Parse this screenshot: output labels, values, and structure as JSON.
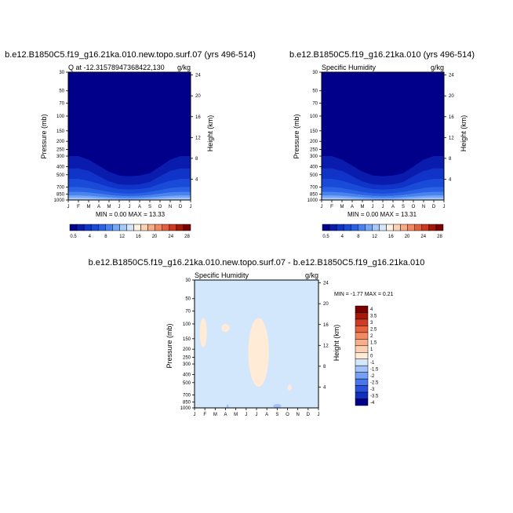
{
  "panels": {
    "top_left": {
      "main_title": "b.e12.B1850C5.f19_g16.21ka.010.new.topo.surf.07 (yrs 496-514)",
      "left_string": "Q at -12.31578947368422,130",
      "right_string": "g/kg",
      "ylabel": "Pressure (mb)",
      "ylabel_right": "Height (km)",
      "minmax": "MIN =  0.00 MAX = 13.33"
    },
    "top_right": {
      "main_title": "b.e12.B1850C5.f19_g16.21ka.010 (yrs 496-514)",
      "left_string": "Specific Humidity",
      "right_string": "g/kg",
      "ylabel": "Pressure (mb)",
      "ylabel_right": "Height (km)",
      "minmax": "MIN =  0.00 MAX = 13.31"
    },
    "bottom": {
      "main_title": "b.e12.B1850C5.f19_g16.21ka.010.new.topo.surf.07 - b.e12.B1850C5.f19_g16.21ka.010",
      "left_string": "Specific Humidity",
      "right_string": "g/kg",
      "ylabel": "Pressure (mb)",
      "ylabel_right": "Height (km)",
      "minmax": "MIN =  -1.77 MAX =   0.21"
    }
  },
  "colors": {
    "abs_scale": [
      "#00008b",
      "#0a1cae",
      "#1034c8",
      "#1a4ad8",
      "#2a62e4",
      "#4a82f0",
      "#76a8f6",
      "#a6c8fa",
      "#d4e6fc",
      "#fff0e0",
      "#fcd2b4",
      "#f8ac86",
      "#f28860",
      "#e4603c",
      "#cc3a20",
      "#a41808",
      "#7a0000"
    ],
    "diff_scale": [
      "#00008b",
      "#1030c0",
      "#2a52de",
      "#4a76ee",
      "#76a0f6",
      "#a2c2fa",
      "#d2e6fc",
      "#ffebd6",
      "#fcd0b0",
      "#f8ae86",
      "#f28a62",
      "#e8623e",
      "#d03c22",
      "#a81808",
      "#7a0000"
    ]
  },
  "chart_data": [
    {
      "type": "heatmap",
      "panel": "top_left",
      "title": "Q at -12.31578947368422,130",
      "xlabel": "",
      "ylabel": "Pressure (mb)",
      "ylabel_right": "Height (km)",
      "units": "g/kg",
      "x_ticks": [
        "J",
        "F",
        "M",
        "A",
        "M",
        "J",
        "J",
        "A",
        "S",
        "O",
        "N",
        "D",
        "J"
      ],
      "y_ticks": [
        30,
        50,
        70,
        100,
        150,
        200,
        250,
        300,
        400,
        500,
        700,
        850,
        1000
      ],
      "y_ticks_right": [
        24,
        20,
        16,
        12,
        8,
        4
      ],
      "ylim": [
        1000,
        30
      ],
      "y_scale": "log",
      "min": 0.0,
      "max": 13.33,
      "contour_levels": [
        0.5,
        2,
        4,
        6,
        8,
        10,
        12,
        14,
        16,
        18,
        20,
        22,
        24,
        26,
        28,
        30
      ],
      "colorbar_labels": [
        "0.5",
        "4",
        "8",
        "12",
        "16",
        "20",
        "24",
        "28"
      ],
      "contours": [
        {
          "level": 0.5,
          "pressure_by_month": [
            300,
            300,
            330,
            390,
            460,
            510,
            520,
            510,
            480,
            400,
            330,
            300,
            300
          ]
        },
        {
          "level": 2,
          "pressure_by_month": [
            420,
            420,
            450,
            520,
            600,
            650,
            660,
            650,
            610,
            520,
            450,
            420,
            420
          ]
        },
        {
          "level": 4,
          "pressure_by_month": [
            560,
            560,
            590,
            640,
            700,
            740,
            750,
            740,
            710,
            640,
            590,
            560,
            560
          ]
        },
        {
          "level": 6,
          "pressure_by_month": [
            700,
            700,
            720,
            760,
            800,
            830,
            840,
            830,
            800,
            760,
            720,
            700,
            700
          ]
        },
        {
          "level": 8,
          "pressure_by_month": [
            800,
            800,
            810,
            840,
            870,
            890,
            900,
            890,
            870,
            840,
            810,
            800,
            800
          ]
        },
        {
          "level": 10,
          "pressure_by_month": [
            880,
            880,
            890,
            910,
            930,
            945,
            950,
            945,
            930,
            910,
            890,
            880,
            880
          ]
        },
        {
          "level": 12,
          "pressure_by_month": [
            940,
            940,
            945,
            960,
            975,
            985,
            990,
            985,
            975,
            960,
            945,
            940,
            940
          ]
        }
      ]
    },
    {
      "type": "heatmap",
      "panel": "top_right",
      "title": "Specific Humidity",
      "xlabel": "",
      "ylabel": "Pressure (mb)",
      "ylabel_right": "Height (km)",
      "units": "g/kg",
      "x_ticks": [
        "J",
        "F",
        "M",
        "A",
        "M",
        "J",
        "J",
        "A",
        "S",
        "O",
        "N",
        "D",
        "J"
      ],
      "y_ticks": [
        30,
        50,
        70,
        100,
        150,
        200,
        250,
        300,
        400,
        500,
        700,
        850,
        1000
      ],
      "y_ticks_right": [
        24,
        20,
        16,
        12,
        8,
        4
      ],
      "ylim": [
        1000,
        30
      ],
      "y_scale": "log",
      "min": 0.0,
      "max": 13.31,
      "contour_levels": [
        0.5,
        2,
        4,
        6,
        8,
        10,
        12,
        14,
        16,
        18,
        20,
        22,
        24,
        26,
        28,
        30
      ],
      "colorbar_labels": [
        "0.5",
        "4",
        "8",
        "12",
        "16",
        "20",
        "24",
        "28"
      ],
      "contours": [
        {
          "level": 0.5,
          "pressure_by_month": [
            300,
            300,
            330,
            390,
            460,
            510,
            520,
            510,
            480,
            400,
            330,
            300,
            300
          ]
        },
        {
          "level": 2,
          "pressure_by_month": [
            420,
            420,
            450,
            520,
            600,
            650,
            660,
            650,
            610,
            520,
            450,
            420,
            420
          ]
        },
        {
          "level": 4,
          "pressure_by_month": [
            560,
            560,
            590,
            640,
            700,
            740,
            750,
            740,
            710,
            640,
            590,
            560,
            560
          ]
        },
        {
          "level": 6,
          "pressure_by_month": [
            700,
            700,
            720,
            760,
            800,
            830,
            840,
            830,
            800,
            760,
            720,
            700,
            700
          ]
        },
        {
          "level": 8,
          "pressure_by_month": [
            800,
            800,
            810,
            840,
            870,
            890,
            900,
            890,
            870,
            840,
            810,
            800,
            800
          ]
        },
        {
          "level": 10,
          "pressure_by_month": [
            880,
            880,
            890,
            910,
            930,
            945,
            950,
            945,
            930,
            910,
            890,
            880,
            880
          ]
        },
        {
          "level": 12,
          "pressure_by_month": [
            940,
            940,
            945,
            960,
            975,
            985,
            990,
            985,
            975,
            960,
            945,
            940,
            940
          ]
        }
      ]
    },
    {
      "type": "heatmap",
      "panel": "bottom",
      "title": "Specific Humidity",
      "xlabel": "",
      "ylabel": "Pressure (mb)",
      "ylabel_right": "Height (km)",
      "units": "g/kg",
      "x_ticks": [
        "J",
        "F",
        "M",
        "A",
        "M",
        "J",
        "J",
        "A",
        "S",
        "O",
        "N",
        "D",
        "J"
      ],
      "y_ticks": [
        30,
        50,
        70,
        100,
        150,
        200,
        250,
        300,
        400,
        500,
        700,
        850,
        1000
      ],
      "y_ticks_right": [
        24,
        20,
        16,
        12,
        8,
        4
      ],
      "ylim": [
        1000,
        30
      ],
      "y_scale": "log",
      "min": -1.77,
      "max": 0.21,
      "background_level": "-0.5 to 0",
      "colorbar_labels": [
        "4",
        "3.5",
        "3",
        "2.5",
        "2",
        "1.5",
        "1",
        "0",
        "-1",
        "-1.5",
        "-2",
        "-2.5",
        "-3",
        "-3.5",
        "-4"
      ],
      "positive_regions": [
        {
          "month_range": [
            0.5,
            1.2
          ],
          "pressure_range": [
            85,
            190
          ]
        },
        {
          "month_range": [
            2.6,
            3.4
          ],
          "pressure_range": [
            100,
            125
          ]
        },
        {
          "month_range": [
            5.2,
            7.2
          ],
          "pressure_range": [
            85,
            560
          ]
        },
        {
          "month_range": [
            9.0,
            9.4
          ],
          "pressure_range": [
            530,
            620
          ]
        }
      ],
      "negative_regions": [
        {
          "month_range": [
            3.1,
            3.3
          ],
          "pressure_range": [
            910,
            1000
          ]
        },
        {
          "month_range": [
            7.6,
            8.4
          ],
          "pressure_range": [
            900,
            1000
          ]
        }
      ]
    }
  ]
}
